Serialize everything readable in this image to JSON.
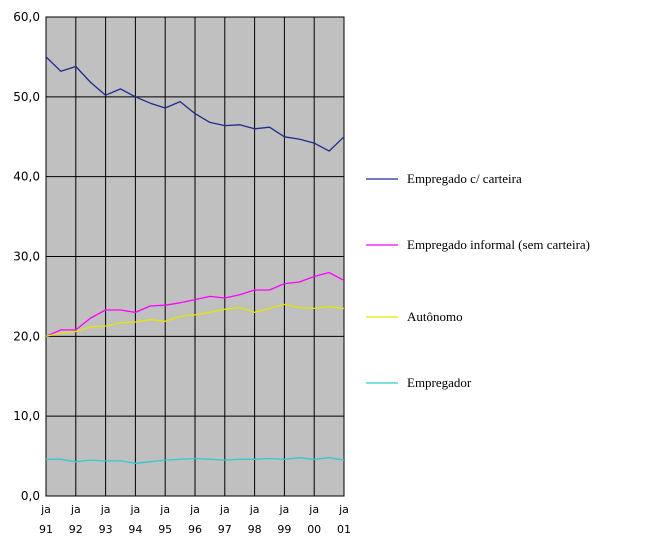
{
  "chart_data": {
    "type": "line",
    "title": "",
    "xlabel": "",
    "ylabel": "",
    "ylim": [
      0,
      60
    ],
    "y_ticks": [
      "0,0",
      "10,0",
      "20,0",
      "30,0",
      "40,0",
      "50,0",
      "60,0"
    ],
    "x_ticks": [
      {
        "top": "ja",
        "bottom": "91"
      },
      {
        "top": "ja",
        "bottom": "92"
      },
      {
        "top": "ja",
        "bottom": "93"
      },
      {
        "top": "ja",
        "bottom": "94"
      },
      {
        "top": "ja",
        "bottom": "95"
      },
      {
        "top": "ja",
        "bottom": "96"
      },
      {
        "top": "ja",
        "bottom": "97"
      },
      {
        "top": "ja",
        "bottom": "98"
      },
      {
        "top": "ja",
        "bottom": "99"
      },
      {
        "top": "ja",
        "bottom": "00"
      },
      {
        "top": "ja",
        "bottom": "01"
      }
    ],
    "x": [
      1991.0,
      1991.5,
      1992.0,
      1992.5,
      1993.0,
      1993.5,
      1994.0,
      1994.5,
      1995.0,
      1995.5,
      1996.0,
      1996.5,
      1997.0,
      1997.5,
      1998.0,
      1998.5,
      1999.0,
      1999.5,
      2000.0,
      2000.5,
      2001.0
    ],
    "grid": true,
    "plot_background": "#c0c0c0",
    "legend_position": "right",
    "series": [
      {
        "name": "Empregado c/ carteira",
        "color": "#1f2a8f",
        "values": [
          55.0,
          53.2,
          53.8,
          51.8,
          50.2,
          51.0,
          50.0,
          49.2,
          48.6,
          49.4,
          47.9,
          46.8,
          46.4,
          46.5,
          46.0,
          46.2,
          45.0,
          44.7,
          44.2,
          43.2,
          45.0
        ]
      },
      {
        "name": "Empregado informal (sem carteira)",
        "color": "#ff00ff",
        "values": [
          20.0,
          20.8,
          20.8,
          22.3,
          23.3,
          23.3,
          23.0,
          23.8,
          23.9,
          24.2,
          24.6,
          25.0,
          24.8,
          25.2,
          25.8,
          25.8,
          26.6,
          26.8,
          27.5,
          28.0,
          27.0
        ]
      },
      {
        "name": "Autônomo",
        "color": "#e6e600",
        "values": [
          20.0,
          20.4,
          20.6,
          21.2,
          21.3,
          21.7,
          21.8,
          22.1,
          21.9,
          22.5,
          22.7,
          23.0,
          23.4,
          23.6,
          23.0,
          23.5,
          24.0,
          23.6,
          23.5,
          23.7,
          23.5
        ]
      },
      {
        "name": "Empregador",
        "color": "#33cccc",
        "values": [
          4.6,
          4.6,
          4.3,
          4.5,
          4.4,
          4.4,
          4.1,
          4.3,
          4.5,
          4.6,
          4.7,
          4.6,
          4.5,
          4.6,
          4.6,
          4.7,
          4.6,
          4.8,
          4.6,
          4.8,
          4.5
        ]
      }
    ]
  }
}
